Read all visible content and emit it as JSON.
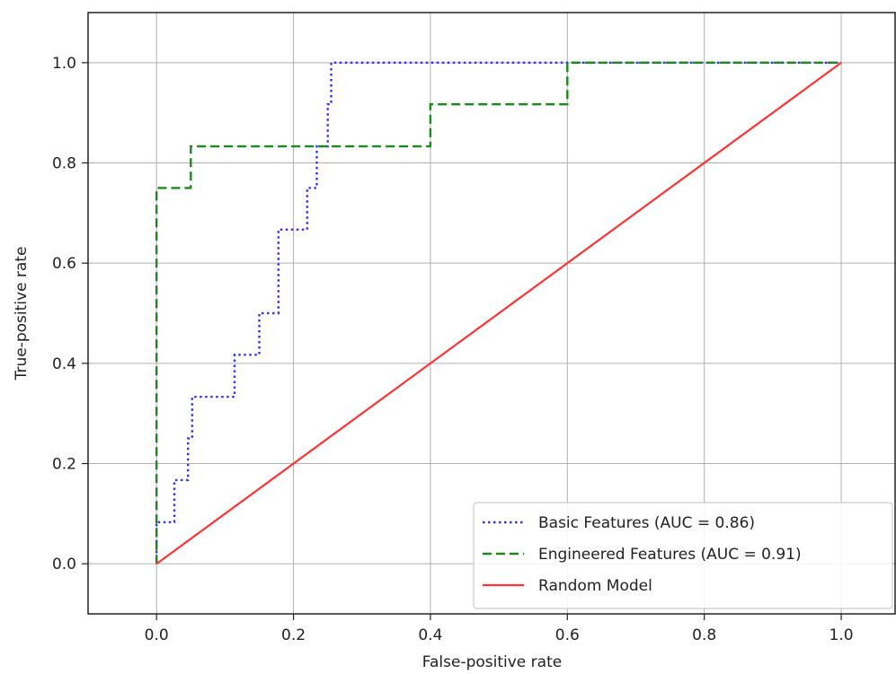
{
  "chart_data": {
    "type": "line",
    "title": "",
    "xlabel": "False-positive rate",
    "ylabel": "True-positive rate",
    "xlim": [
      -0.1,
      1.08
    ],
    "ylim": [
      -0.1,
      1.1
    ],
    "x_ticks": [
      "0.0",
      "0.2",
      "0.4",
      "0.6",
      "0.8",
      "1.0"
    ],
    "y_ticks": [
      "0.0",
      "0.2",
      "0.4",
      "0.6",
      "0.8",
      "1.0"
    ],
    "grid": true,
    "legend_position": "lower-right",
    "series": [
      {
        "name": "Basic Features (AUC = 0.86)",
        "style": "dotted",
        "color": "#3333ff",
        "x": [
          0.0,
          0.0,
          0.0,
          0.026,
          0.026,
          0.035,
          0.035,
          0.046,
          0.046,
          0.052,
          0.052,
          0.058,
          0.058,
          0.114,
          0.114,
          0.15,
          0.15,
          0.178,
          0.178,
          0.22,
          0.22,
          0.234,
          0.234,
          0.24,
          0.24,
          0.25,
          0.25,
          0.255,
          0.255,
          0.6,
          1.0
        ],
        "y": [
          0.0,
          0.0,
          0.083,
          0.083,
          0.167,
          0.167,
          0.167,
          0.167,
          0.25,
          0.25,
          0.333,
          0.333,
          0.333,
          0.333,
          0.417,
          0.417,
          0.5,
          0.5,
          0.667,
          0.667,
          0.75,
          0.75,
          0.833,
          0.833,
          0.833,
          0.833,
          0.917,
          0.917,
          1.0,
          1.0,
          1.0
        ]
      },
      {
        "name": "Engineered Features (AUC = 0.91)",
        "style": "dashed",
        "color": "#1a8a1a",
        "x": [
          0.0,
          0.0,
          0.05,
          0.05,
          0.4,
          0.4,
          0.6,
          0.6,
          1.0
        ],
        "y": [
          0.0,
          0.75,
          0.75,
          0.833,
          0.833,
          0.917,
          0.917,
          1.0,
          1.0
        ]
      },
      {
        "name": "Random Model",
        "style": "solid",
        "color": "#ff3333",
        "x": [
          0.0,
          1.0
        ],
        "y": [
          0.0,
          1.0
        ]
      }
    ]
  }
}
